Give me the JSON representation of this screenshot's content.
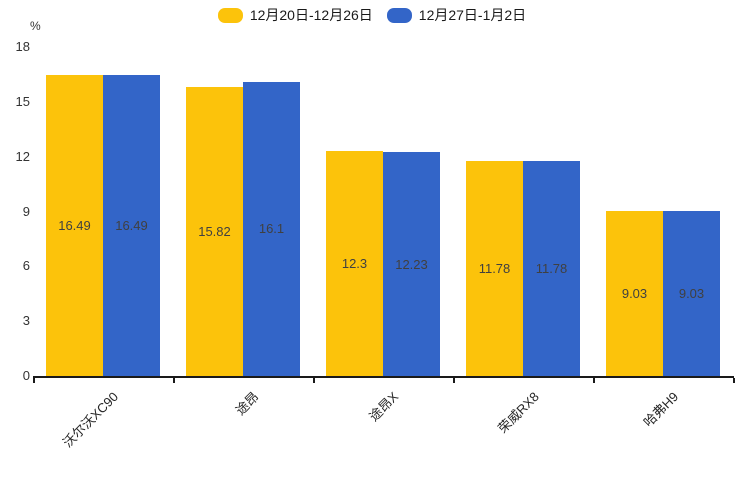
{
  "chart_data": {
    "type": "bar",
    "title": "",
    "ylabel": "%",
    "xlabel": "",
    "categories": [
      "沃尔沃XC90",
      "途昂",
      "途昂X",
      "荣威RX8",
      "哈弗H9"
    ],
    "series": [
      {
        "name": "12月20日-12月26日",
        "color": "#FCC30B",
        "values": [
          16.49,
          15.82,
          12.3,
          11.78,
          9.03
        ],
        "labels": [
          "16.49",
          "15.82",
          "12.3",
          "11.78",
          "9.03"
        ]
      },
      {
        "name": "12月27日-1月2日",
        "color": "#3365C8",
        "values": [
          16.49,
          16.1,
          12.23,
          11.78,
          9.03
        ],
        "labels": [
          "16.49",
          "16.1",
          "12.23",
          "11.78",
          "9.03"
        ]
      }
    ],
    "ylim": [
      0,
      18
    ],
    "yticks": [
      0,
      3,
      6,
      9,
      12,
      15,
      18
    ],
    "grid": false,
    "legend_position": "top-center",
    "value_labels": "inside-middle",
    "value_label_color": "#404040",
    "axis_color": "#1a1a1a"
  }
}
